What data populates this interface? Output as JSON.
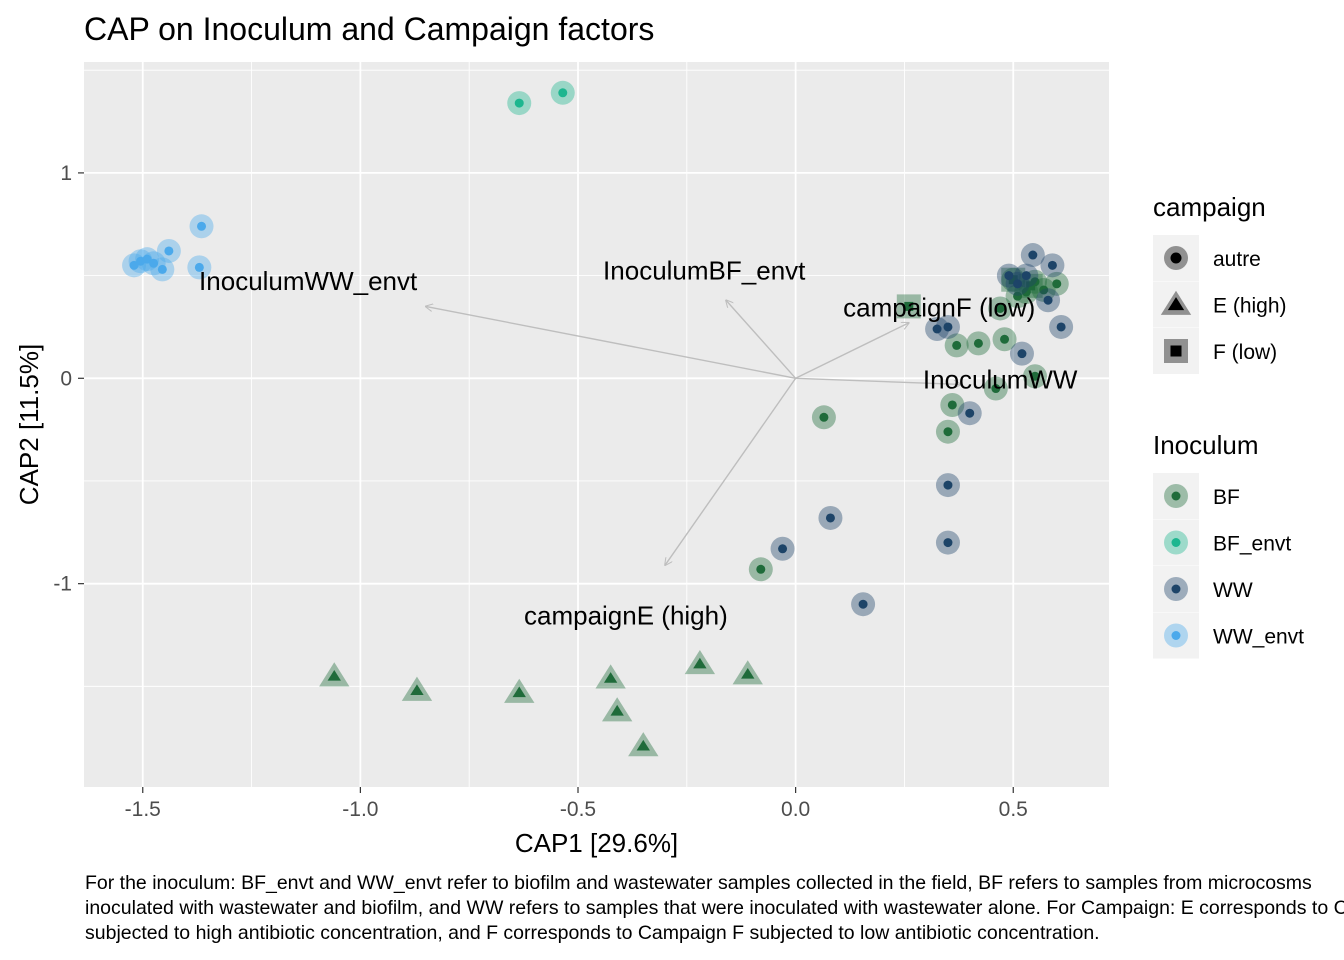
{
  "chart_data": {
    "type": "scatter",
    "title": "CAP on Inoculum and Campaign factors",
    "xlabel": "CAP1   [29.6%]",
    "ylabel": "CAP2   [11.5%]",
    "xlim": [
      -1.635,
      0.72
    ],
    "ylim": [
      -1.99,
      1.54
    ],
    "x_ticks": [
      -1.5,
      -1.0,
      -0.5,
      0.0,
      0.5
    ],
    "x_tick_labels": [
      "-1.5",
      "-1.0",
      "-0.5",
      "0.0",
      "0.5"
    ],
    "y_ticks": [
      -1,
      0,
      1
    ],
    "y_tick_labels": [
      "-1",
      "0",
      "1"
    ],
    "grid": true,
    "colors": {
      "panel": "#EBEBEB",
      "grid": "#FFFFFF",
      "arrow": "#BEBEBE",
      "BF": "#1F6B3A",
      "BF_envt": "#1DB68F",
      "WW": "#1D4468",
      "WW_envt": "#4BA9EB"
    },
    "series": [
      {
        "name": "BF",
        "points": [
          {
            "x": 0.065,
            "y": -0.19,
            "shape": "autre"
          },
          {
            "x": -0.08,
            "y": -0.93,
            "shape": "autre"
          },
          {
            "x": 0.42,
            "y": 0.17,
            "shape": "autre"
          },
          {
            "x": 0.37,
            "y": 0.16,
            "shape": "autre"
          },
          {
            "x": 0.48,
            "y": 0.19,
            "shape": "autre"
          },
          {
            "x": 0.55,
            "y": 0.01,
            "shape": "autre"
          },
          {
            "x": 0.46,
            "y": -0.05,
            "shape": "autre"
          },
          {
            "x": 0.36,
            "y": -0.13,
            "shape": "autre"
          },
          {
            "x": 0.35,
            "y": -0.26,
            "shape": "autre"
          },
          {
            "x": 0.47,
            "y": 0.34,
            "shape": "autre"
          },
          {
            "x": 0.5,
            "y": 0.48,
            "shape": "autre"
          },
          {
            "x": 0.53,
            "y": 0.42,
            "shape": "autre"
          },
          {
            "x": 0.57,
            "y": 0.43,
            "shape": "autre"
          },
          {
            "x": 0.6,
            "y": 0.46,
            "shape": "autre"
          },
          {
            "x": 0.55,
            "y": 0.47,
            "shape": "autre"
          },
          {
            "x": 0.51,
            "y": 0.4,
            "shape": "autre"
          },
          {
            "x": -1.06,
            "y": -1.45,
            "shape": "E (high)"
          },
          {
            "x": -0.87,
            "y": -1.52,
            "shape": "E (high)"
          },
          {
            "x": -0.635,
            "y": -1.53,
            "shape": "E (high)"
          },
          {
            "x": -0.425,
            "y": -1.46,
            "shape": "E (high)"
          },
          {
            "x": -0.41,
            "y": -1.62,
            "shape": "E (high)"
          },
          {
            "x": -0.35,
            "y": -1.79,
            "shape": "E (high)"
          },
          {
            "x": -0.22,
            "y": -1.39,
            "shape": "E (high)"
          },
          {
            "x": -0.11,
            "y": -1.44,
            "shape": "E (high)"
          },
          {
            "x": 0.26,
            "y": 0.35,
            "shape": "F (low)"
          },
          {
            "x": 0.5,
            "y": 0.48,
            "shape": "F (low)"
          },
          {
            "x": 0.54,
            "y": 0.45,
            "shape": "F (low)"
          }
        ]
      },
      {
        "name": "BF_envt",
        "points": [
          {
            "x": -0.635,
            "y": 1.34,
            "shape": "autre"
          },
          {
            "x": -0.535,
            "y": 1.39,
            "shape": "autre"
          }
        ]
      },
      {
        "name": "WW",
        "points": [
          {
            "x": 0.155,
            "y": -1.1,
            "shape": "autre"
          },
          {
            "x": 0.08,
            "y": -0.68,
            "shape": "autre"
          },
          {
            "x": -0.03,
            "y": -0.83,
            "shape": "autre"
          },
          {
            "x": 0.35,
            "y": -0.52,
            "shape": "autre"
          },
          {
            "x": 0.35,
            "y": -0.8,
            "shape": "autre"
          },
          {
            "x": 0.4,
            "y": -0.17,
            "shape": "autre"
          },
          {
            "x": 0.52,
            "y": 0.12,
            "shape": "autre"
          },
          {
            "x": 0.325,
            "y": 0.24,
            "shape": "autre"
          },
          {
            "x": 0.35,
            "y": 0.25,
            "shape": "autre"
          },
          {
            "x": 0.545,
            "y": 0.6,
            "shape": "autre"
          },
          {
            "x": 0.59,
            "y": 0.55,
            "shape": "autre"
          },
          {
            "x": 0.61,
            "y": 0.25,
            "shape": "autre"
          },
          {
            "x": 0.49,
            "y": 0.5,
            "shape": "autre"
          },
          {
            "x": 0.58,
            "y": 0.38,
            "shape": "autre"
          },
          {
            "x": 0.51,
            "y": 0.46,
            "shape": "autre"
          },
          {
            "x": 0.53,
            "y": 0.5,
            "shape": "autre"
          }
        ]
      },
      {
        "name": "WW_envt",
        "points": [
          {
            "x": -1.52,
            "y": 0.55,
            "shape": "autre"
          },
          {
            "x": -1.505,
            "y": 0.57,
            "shape": "autre"
          },
          {
            "x": -1.49,
            "y": 0.58,
            "shape": "autre"
          },
          {
            "x": -1.475,
            "y": 0.56,
            "shape": "autre"
          },
          {
            "x": -1.455,
            "y": 0.53,
            "shape": "autre"
          },
          {
            "x": -1.44,
            "y": 0.62,
            "shape": "autre"
          },
          {
            "x": -1.365,
            "y": 0.74,
            "shape": "autre"
          },
          {
            "x": -1.37,
            "y": 0.54,
            "shape": "autre"
          }
        ]
      }
    ],
    "arrows": [
      {
        "label": "InoculumWW_envt",
        "x": -0.85,
        "y": 0.35,
        "label_x": -1.12,
        "label_y": 0.43
      },
      {
        "label": "InoculumBF_envt",
        "x": -0.16,
        "y": 0.38,
        "label_x": -0.21,
        "label_y": 0.48
      },
      {
        "label": "campaignF (low)",
        "x": 0.26,
        "y": 0.27,
        "label_x": 0.33,
        "label_y": 0.3
      },
      {
        "label": "InoculumWW",
        "x": 0.38,
        "y": -0.03,
        "label_x": 0.47,
        "label_y": -0.05
      },
      {
        "label": "campaignE (high)",
        "x": -0.3,
        "y": -0.91,
        "label_x": -0.39,
        "label_y": -1.2
      }
    ],
    "origin_arrow_start": {
      "x": 0.0,
      "y": 0.0
    },
    "legends": [
      {
        "title": "campaign",
        "placement": "right",
        "items": [
          {
            "label": "autre",
            "shape": "circle"
          },
          {
            "label": "E (high)",
            "shape": "triangle"
          },
          {
            "label": "F (low)",
            "shape": "square"
          }
        ]
      },
      {
        "title": "Inoculum",
        "placement": "right",
        "items": [
          {
            "label": "BF",
            "color_key": "BF"
          },
          {
            "label": "BF_envt",
            "color_key": "BF_envt"
          },
          {
            "label": "WW",
            "color_key": "WW"
          },
          {
            "label": "WW_envt",
            "color_key": "WW_envt"
          }
        ]
      }
    ]
  },
  "caption": {
    "line1": "For the inoculum: BF_envt and WW_envt refer to biofilm and wastewater samples collected in the field, BF refers to samples from microcosms",
    "line2": "inoculated with wastewater and biofilm, and WW refers to samples that were inoculated with wastewater alone. For Campaign: E corresponds to Campaign E",
    "line3": "subjected to high antibiotic concentration, and F corresponds to Campaign F subjected to low antibiotic concentration."
  }
}
